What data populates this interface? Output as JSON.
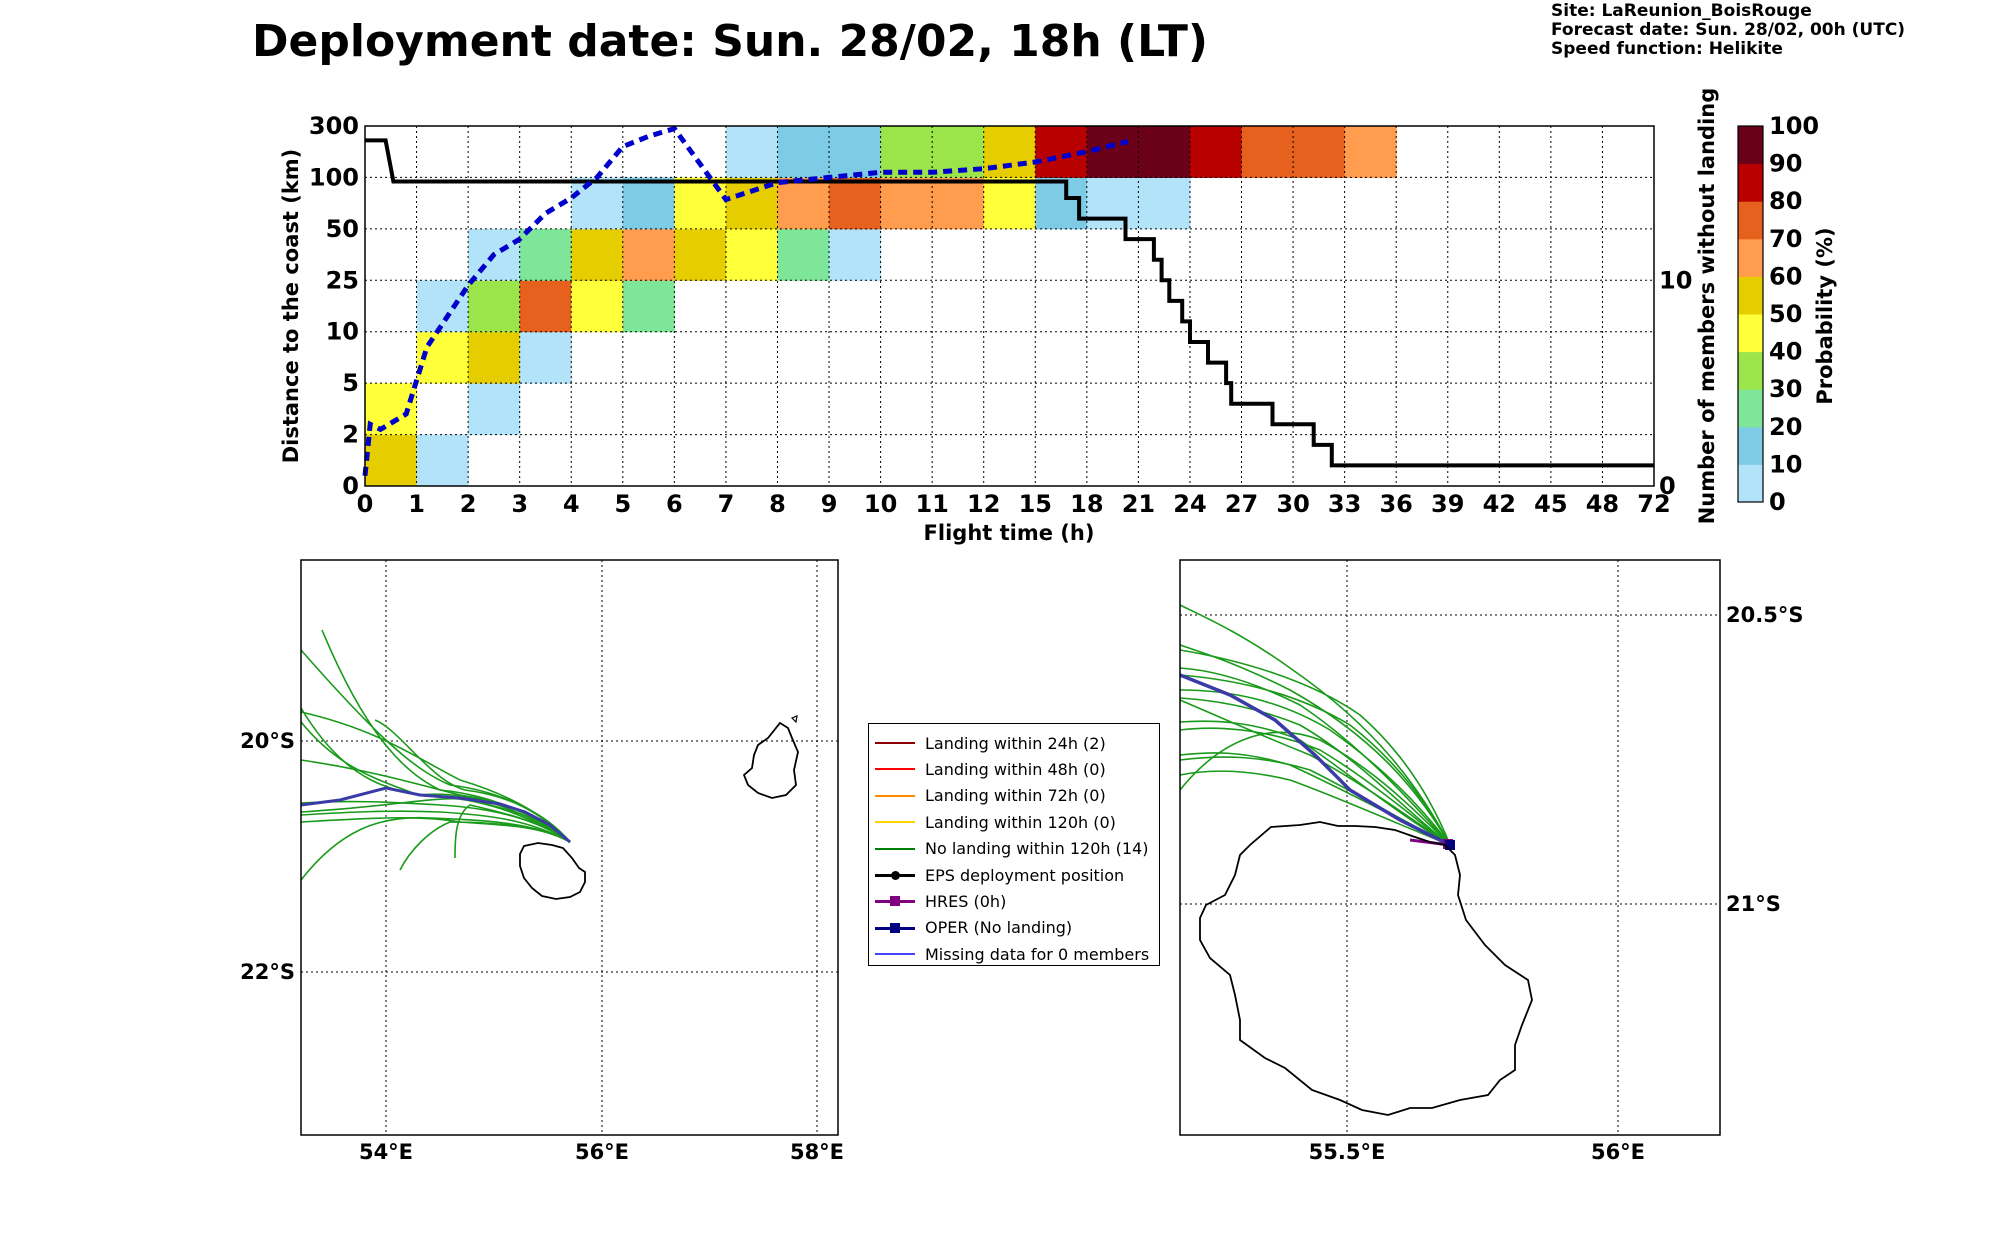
{
  "header": {
    "title": "Deployment date: Sun. 28/02, 18h (LT)",
    "site": "Site: LaReunion_BoisRouge",
    "forecast": "Forecast date: Sun. 28/02, 00h (UTC)",
    "speed": "Speed function: Helikite"
  },
  "chart_data": [
    {
      "type": "heatmap",
      "title": "",
      "xlabel": "Flight time (h)",
      "ylabel": "Distance to the coast (km)",
      "ylabel_right": "Number of members without landing",
      "colorbar_label": "Probability (%)",
      "x_ticks": [
        "0",
        "1",
        "2",
        "3",
        "4",
        "5",
        "6",
        "7",
        "8",
        "9",
        "10",
        "11",
        "12",
        "15",
        "18",
        "21",
        "24",
        "27",
        "30",
        "33",
        "36",
        "39",
        "42",
        "45",
        "48",
        "72"
      ],
      "y_ticks": [
        "0",
        "2",
        "5",
        "10",
        "25",
        "50",
        "100",
        "300"
      ],
      "y_right_ticks": [
        "0",
        "10"
      ],
      "colorbar_ticks": [
        "0",
        "10",
        "20",
        "30",
        "40",
        "50",
        "60",
        "70",
        "80",
        "90",
        "100"
      ],
      "colorbar_colors": [
        "#b3e3f8",
        "#7ecbe5",
        "#7ee699",
        "#9be44a",
        "#ffff3a",
        "#e5cd00",
        "#ff9c4d",
        "#e6611d",
        "#b80000",
        "#6b0019"
      ],
      "grid": true,
      "cells": [
        {
          "x": 0,
          "y": 0,
          "p": 50
        },
        {
          "x": 0,
          "y": 1,
          "p": 40
        },
        {
          "x": 1,
          "y": 0,
          "p": 0
        },
        {
          "x": 1,
          "y": 2,
          "p": 40
        },
        {
          "x": 1,
          "y": 3,
          "p": 0
        },
        {
          "x": 2,
          "y": 1,
          "p": 0
        },
        {
          "x": 2,
          "y": 2,
          "p": 50
        },
        {
          "x": 2,
          "y": 3,
          "p": 30
        },
        {
          "x": 2,
          "y": 4,
          "p": 0
        },
        {
          "x": 3,
          "y": 2,
          "p": 0
        },
        {
          "x": 3,
          "y": 3,
          "p": 70
        },
        {
          "x": 3,
          "y": 4,
          "p": 20
        },
        {
          "x": 4,
          "y": 3,
          "p": 40
        },
        {
          "x": 4,
          "y": 4,
          "p": 50
        },
        {
          "x": 4,
          "y": 5,
          "p": 0
        },
        {
          "x": 5,
          "y": 3,
          "p": 20
        },
        {
          "x": 5,
          "y": 4,
          "p": 60
        },
        {
          "x": 5,
          "y": 5,
          "p": 10
        },
        {
          "x": 6,
          "y": 4,
          "p": 50
        },
        {
          "x": 6,
          "y": 5,
          "p": 40
        },
        {
          "x": 7,
          "y": 4,
          "p": 40
        },
        {
          "x": 7,
          "y": 5,
          "p": 50
        },
        {
          "x": 7,
          "y": 6,
          "p": 0
        },
        {
          "x": 8,
          "y": 4,
          "p": 20
        },
        {
          "x": 8,
          "y": 5,
          "p": 60
        },
        {
          "x": 8,
          "y": 6,
          "p": 10
        },
        {
          "x": 9,
          "y": 4,
          "p": 0
        },
        {
          "x": 9,
          "y": 5,
          "p": 70
        },
        {
          "x": 9,
          "y": 6,
          "p": 10
        },
        {
          "x": 10,
          "y": 5,
          "p": 60
        },
        {
          "x": 10,
          "y": 6,
          "p": 30
        },
        {
          "x": 11,
          "y": 5,
          "p": 60
        },
        {
          "x": 11,
          "y": 6,
          "p": 30
        },
        {
          "x": 12,
          "y": 5,
          "p": 40
        },
        {
          "x": 12,
          "y": 6,
          "p": 50
        },
        {
          "x": 13,
          "y": 5,
          "p": 10
        },
        {
          "x": 13,
          "y": 6,
          "p": 80
        },
        {
          "x": 14,
          "y": 5,
          "p": 0
        },
        {
          "x": 14,
          "y": 6,
          "p": 90
        },
        {
          "x": 15,
          "y": 5,
          "p": 0
        },
        {
          "x": 15,
          "y": 6,
          "p": 90
        },
        {
          "x": 16,
          "y": 6,
          "p": 80
        },
        {
          "x": 17,
          "y": 6,
          "p": 70
        },
        {
          "x": 18,
          "y": 6,
          "p": 70
        },
        {
          "x": 19,
          "y": 6,
          "p": 60
        }
      ],
      "series": [
        {
          "name": "",
          "color": "#000000",
          "axis": "right",
          "points": [
            [
              0,
              16.8
            ],
            [
              0.4,
              16.8
            ],
            [
              0.55,
              14.8
            ],
            [
              13.6,
              14.8
            ],
            [
              13.6,
              14
            ],
            [
              13.85,
              14
            ],
            [
              13.85,
              13
            ],
            [
              14.75,
              13
            ],
            [
              14.75,
              12
            ],
            [
              15.3,
              12
            ],
            [
              15.3,
              11
            ],
            [
              15.45,
              11
            ],
            [
              15.45,
              10
            ],
            [
              15.6,
              10
            ],
            [
              15.6,
              9
            ],
            [
              15.85,
              9
            ],
            [
              15.85,
              8
            ],
            [
              16.0,
              8
            ],
            [
              16.0,
              7
            ],
            [
              16.35,
              7
            ],
            [
              16.35,
              6
            ],
            [
              16.7,
              6
            ],
            [
              16.7,
              5
            ],
            [
              16.8,
              5
            ],
            [
              16.8,
              4
            ],
            [
              17.6,
              4
            ],
            [
              17.6,
              3
            ],
            [
              18.4,
              3
            ],
            [
              18.4,
              2
            ],
            [
              18.75,
              2
            ],
            [
              18.75,
              1
            ],
            [
              25,
              1
            ]
          ]
        },
        {
          "name": "",
          "color": "#0000cc",
          "style": "dashed",
          "points": [
            [
              0,
              0.2
            ],
            [
              0.1,
              1.2
            ],
            [
              0.3,
              1.1
            ],
            [
              0.55,
              1.25
            ],
            [
              0.8,
              1.4
            ],
            [
              1.2,
              2.7
            ],
            [
              1.6,
              3.3
            ],
            [
              2.0,
              3.9
            ],
            [
              2.5,
              4.5
            ],
            [
              3.0,
              4.8
            ],
            [
              3.5,
              5.3
            ],
            [
              4.0,
              5.6
            ],
            [
              4.5,
              6.0
            ],
            [
              5.0,
              6.6
            ],
            [
              5.5,
              6.8
            ],
            [
              6.0,
              6.95
            ],
            [
              7.0,
              5.57
            ],
            [
              8.0,
              5.9
            ],
            [
              9.0,
              6.0
            ],
            [
              10.0,
              6.1
            ],
            [
              11.0,
              6.1
            ],
            [
              12.0,
              6.17
            ],
            [
              13.0,
              6.3
            ],
            [
              14.0,
              6.5
            ],
            [
              14.8,
              6.7
            ]
          ]
        }
      ]
    }
  ],
  "legend": {
    "items": [
      {
        "label": "Landing within 24h (2)",
        "color": "#8b0000",
        "marker": "none"
      },
      {
        "label": "Landing within 48h (0)",
        "color": "#ff0000",
        "marker": "none"
      },
      {
        "label": "Landing within 72h (0)",
        "color": "#ff8c00",
        "marker": "none"
      },
      {
        "label": "Landing within 120h (0)",
        "color": "#ffd700",
        "marker": "none"
      },
      {
        "label": "No landing within 120h (14)",
        "color": "#008000",
        "marker": "none"
      },
      {
        "label": "EPS deployment position",
        "color": "#000000",
        "marker": "circle"
      },
      {
        "label": "HRES (0h)",
        "color": "#800080",
        "marker": "square"
      },
      {
        "label": "OPER (No landing)",
        "color": "#000080",
        "marker": "square"
      },
      {
        "label": "Missing data for 0 members",
        "color": "#4444ff",
        "marker": "none"
      }
    ]
  },
  "maps": {
    "left": {
      "lon_ticks": [
        "54°E",
        "56°E",
        "58°E"
      ],
      "lat_ticks": [
        "20°S",
        "22°S"
      ]
    },
    "right": {
      "lon_ticks": [
        "55.5°E",
        "56°E"
      ],
      "lat_ticks": [
        "20.5°S",
        "21°S"
      ]
    }
  }
}
